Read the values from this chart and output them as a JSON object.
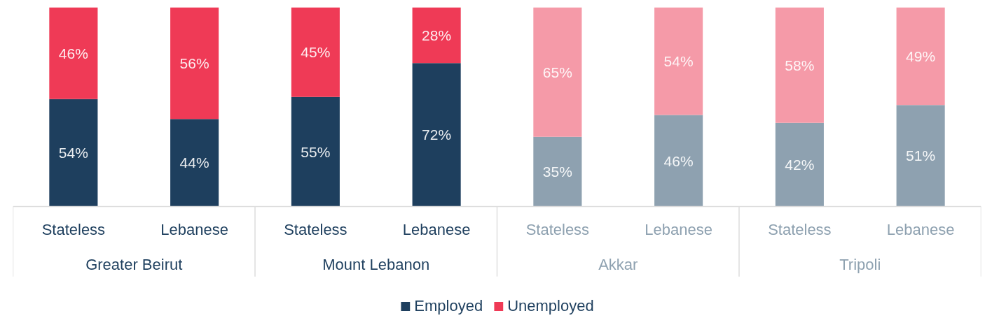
{
  "chart_data": {
    "type": "bar",
    "stacked": true,
    "categories": [
      "Stateless",
      "Lebanese",
      "Stateless",
      "Lebanese",
      "Stateless",
      "Lebanese",
      "Stateless",
      "Lebanese"
    ],
    "ylim": [
      0,
      100
    ],
    "legend": "bottom",
    "series": [
      {
        "name": "Employed",
        "colors": [
          "#1e3f5e",
          "#1e3f5e",
          "#1e3f5e",
          "#1e3f5e",
          "#8ea1b0",
          "#8ea1b0",
          "#8ea1b0",
          "#8ea1b0"
        ],
        "values": [
          54,
          44,
          55,
          72,
          35,
          46,
          42,
          51
        ],
        "value_labels": [
          "54%",
          "44%",
          "55%",
          "72%",
          "35%",
          "46%",
          "42%",
          "51%"
        ]
      },
      {
        "name": "Unemployed",
        "colors": [
          "#ef3a56",
          "#ef3a56",
          "#ef3a56",
          "#ef3a56",
          "#f59aa8",
          "#f59aa8",
          "#f59aa8",
          "#f59aa8"
        ],
        "values": [
          46,
          56,
          45,
          28,
          65,
          54,
          58,
          49
        ],
        "value_labels": [
          "46%",
          "56%",
          "45%",
          "28%",
          "65%",
          "54%",
          "58%",
          "49%"
        ]
      }
    ],
    "annotations": [
      "Greater Beirut",
      "Mount Lebanon",
      "Akkar",
      "Tripoli"
    ]
  }
}
